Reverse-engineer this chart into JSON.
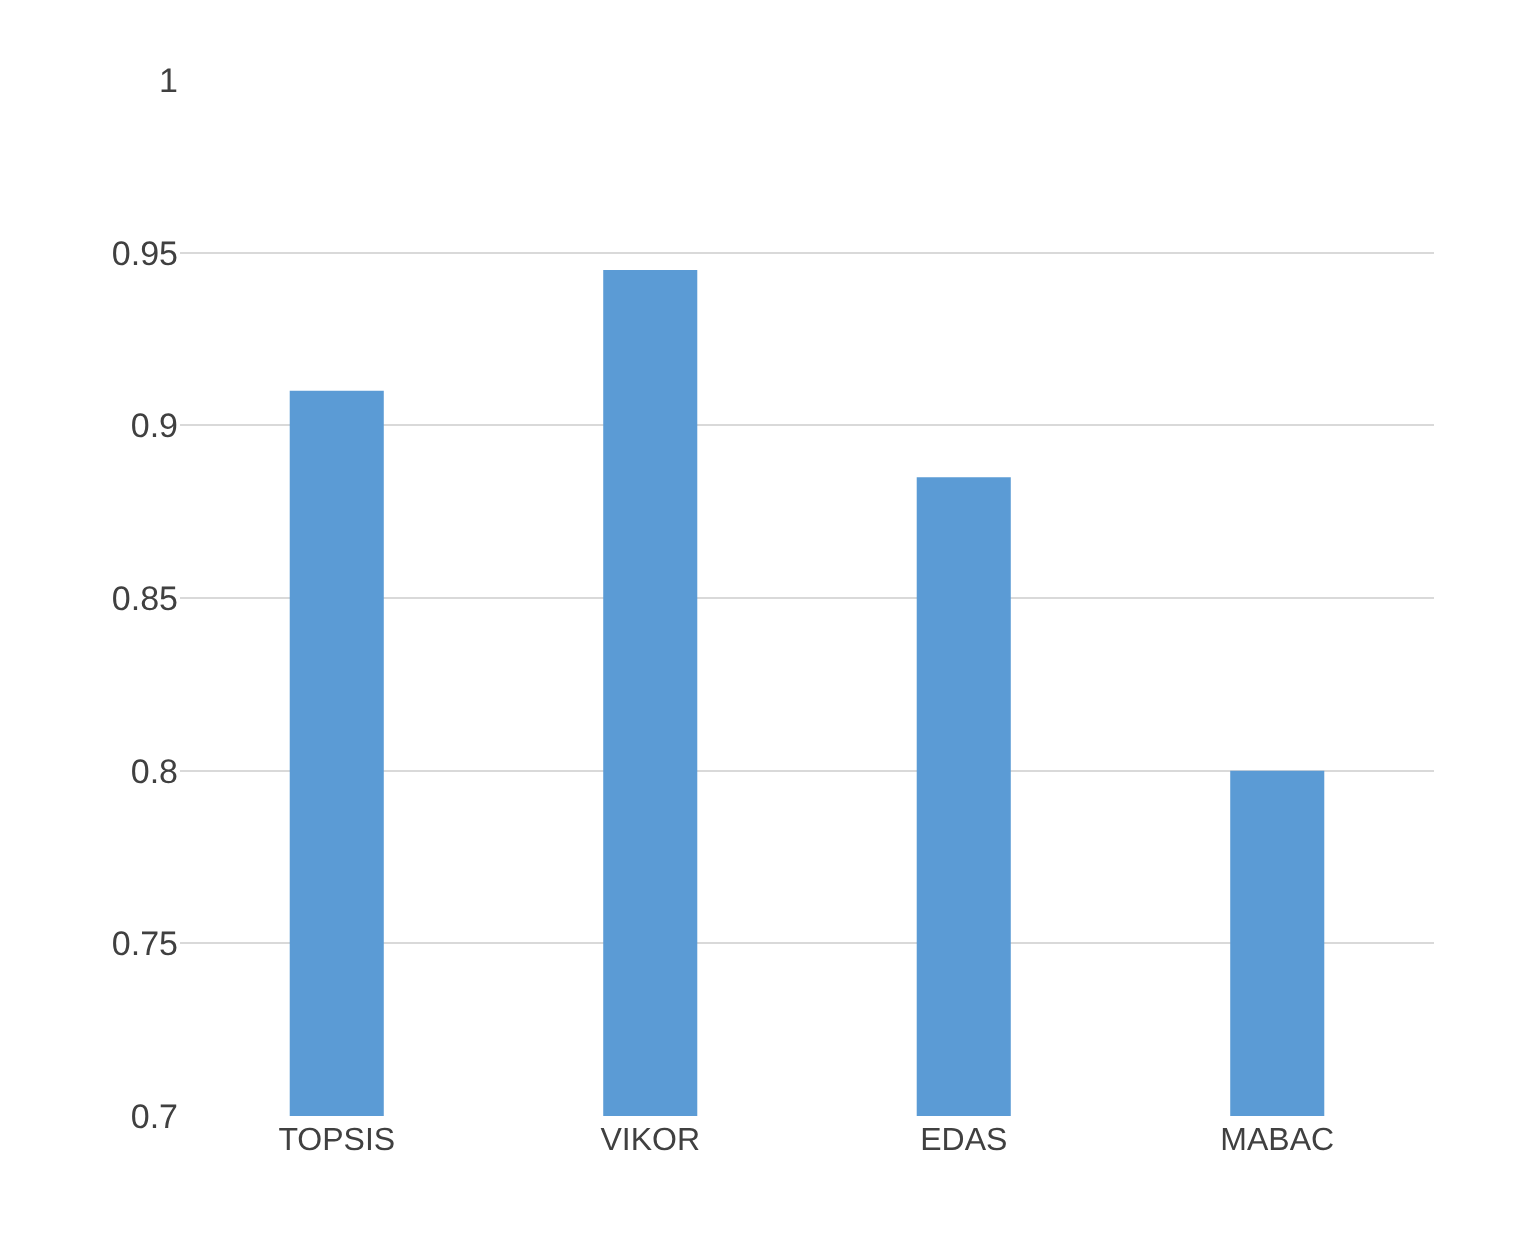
{
  "chart_data": {
    "type": "bar",
    "categories": [
      "TOPSIS",
      "VIKOR",
      "EDAS",
      "MABAC"
    ],
    "values": [
      0.91,
      0.945,
      0.885,
      0.8
    ],
    "color": "#5b9bd5",
    "ylim": [
      0.7,
      1
    ],
    "yticks": [
      0.7,
      0.75,
      0.8,
      0.85,
      0.9,
      0.95,
      1
    ],
    "grid": "y"
  }
}
